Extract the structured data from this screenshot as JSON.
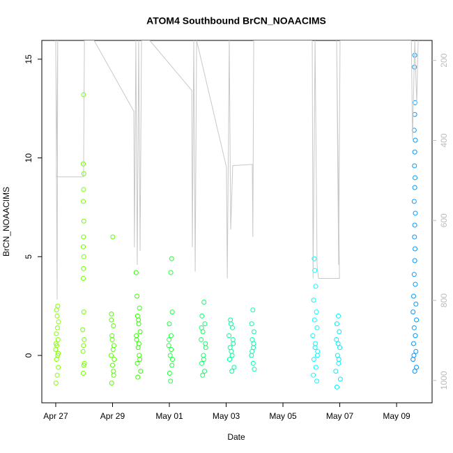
{
  "chart_data": {
    "type": "scatter",
    "title": "ATOM4 Southbound BrCN_NOAACIMS",
    "x_label": "Date",
    "y_label": "BrCN_NOAACIMS",
    "xlim": [
      -0.49,
      13.25
    ],
    "xticks": [
      {
        "value": 0,
        "label": "Apr 27"
      },
      {
        "value": 2,
        "label": "Apr 29"
      },
      {
        "value": 4,
        "label": "May 01"
      },
      {
        "value": 6,
        "label": "May 03"
      },
      {
        "value": 8,
        "label": "May 05"
      },
      {
        "value": 10,
        "label": "May 07"
      },
      {
        "value": 12,
        "label": "May 09"
      }
    ],
    "ylim": [
      -2.4,
      15.95
    ],
    "yticks": [
      0,
      5,
      10,
      15
    ],
    "y2lim": [
      1056,
      150
    ],
    "y2ticks": [
      200,
      400,
      600,
      800,
      1000
    ],
    "series": [
      {
        "color": "#80ff00",
        "x": [
          0.01,
          0.05,
          0.09,
          0.03,
          0.07,
          0.0,
          0.04,
          0.08,
          0.02,
          0.06,
          0.1,
          0.05,
          0.03,
          0.07,
          0.09,
          0.01
        ],
        "values": [
          -1.4,
          -1.0,
          -0.6,
          -0.2,
          0,
          0.3,
          0.5,
          0.8,
          1.1,
          1.4,
          1.7,
          2.0,
          2.3,
          2.5,
          0.1,
          0.6
        ]
      },
      {
        "color": "#70ff00",
        "x": [
          0.98,
          0.97,
          0.99,
          0.98,
          0.97,
          0.99,
          0.98,
          0.97,
          0.99,
          0.98,
          0.97,
          0.99,
          0.95,
          1.0,
          0.96,
          1.01,
          0.97,
          0.99,
          0.98
        ],
        "values": [
          13.2,
          9.7,
          9.2,
          8.4,
          7.8,
          6.8,
          6.0,
          5.5,
          5.0,
          4.4,
          3.9,
          2.2,
          1.3,
          0.8,
          0.2,
          -0.4,
          -0.9,
          -0.5,
          0.5
        ]
      },
      {
        "color": "#55ff00",
        "x": [
          2.01,
          1.96,
          2.03,
          1.98,
          2.05,
          1.95,
          2.0,
          2.04,
          1.97,
          2.02,
          1.99,
          2.06,
          1.96,
          2.03
        ],
        "values": [
          6.0,
          2.1,
          1.5,
          1.0,
          0.5,
          0,
          -0.5,
          -1.0,
          -1.4,
          0.3,
          0.8,
          -0.2,
          1.8,
          -0.8
        ]
      },
      {
        "color": "#33ff00",
        "x": [
          2.83,
          2.86,
          2.95,
          2.88,
          2.92,
          2.97,
          2.85,
          2.9,
          2.94,
          2.87,
          2.99,
          2.89,
          2.93,
          2.84,
          2.96,
          2.91
        ],
        "values": [
          4.2,
          3.0,
          2.4,
          2.0,
          1.6,
          1.2,
          0.8,
          0.4,
          0,
          -0.4,
          -0.8,
          -1.1,
          0.6,
          1.0,
          -0.2,
          1.8
        ]
      },
      {
        "color": "#22ff40",
        "x": [
          4.08,
          4.05,
          4.1,
          4.0,
          4.06,
          3.98,
          4.03,
          4.09,
          4.01,
          4.04,
          4.07,
          3.99,
          4.11
        ],
        "values": [
          4.9,
          4.2,
          2.2,
          1.6,
          1.0,
          0.5,
          0,
          -0.5,
          -0.9,
          -1.3,
          0.3,
          0.8,
          -0.2
        ]
      },
      {
        "color": "#11ff66",
        "x": [
          5.22,
          5.15,
          5.25,
          5.18,
          5.12,
          5.28,
          5.2,
          5.14,
          5.24,
          5.17,
          5.27,
          5.21,
          5.13
        ],
        "values": [
          2.7,
          2.0,
          1.6,
          1.2,
          0.8,
          0.4,
          0,
          -0.4,
          -0.8,
          -1.0,
          0.6,
          -0.2,
          1.4
        ]
      },
      {
        "color": "#00ff99",
        "x": [
          6.15,
          6.22,
          6.1,
          6.25,
          6.18,
          6.12,
          6.28,
          6.2,
          6.14,
          6.24,
          6.17,
          6.21
        ],
        "values": [
          1.8,
          1.4,
          1.0,
          0.6,
          0.2,
          -0.2,
          -0.6,
          -0.8,
          0.4,
          0.8,
          1.6,
          0
        ]
      },
      {
        "color": "#00ffaa",
        "x": [
          6.94,
          6.9,
          6.98,
          6.92,
          6.96,
          6.89,
          6.95,
          6.99,
          6.91,
          6.97
        ],
        "values": [
          2.3,
          1.6,
          1.2,
          0.8,
          0.4,
          0,
          -0.4,
          -0.7,
          0.2,
          0.6
        ]
      },
      {
        "color": "#00ffff",
        "x": [
          9.1,
          9.12,
          9.15,
          9.08,
          9.18,
          9.11,
          9.2,
          9.05,
          9.14,
          9.22,
          9.09,
          9.16,
          9.07,
          9.19,
          9.13,
          9.21
        ],
        "values": [
          4.9,
          4.3,
          3.5,
          2.8,
          2.2,
          1.8,
          1.4,
          1.0,
          0.6,
          0.2,
          -0.2,
          -0.6,
          -1.0,
          -1.3,
          0.4,
          0
        ]
      },
      {
        "color": "#00f0ff",
        "x": [
          9.95,
          9.9,
          9.98,
          9.88,
          10.0,
          9.92,
          9.96,
          9.86,
          10.02,
          9.9,
          9.94,
          9.97
        ],
        "values": [
          2.0,
          1.6,
          1.2,
          0.8,
          0.4,
          0,
          -0.4,
          -0.8,
          -1.2,
          -1.6,
          0.6,
          -0.2
        ]
      },
      {
        "color": "#0099ff",
        "x": [
          12.64,
          12.63,
          12.65,
          12.64,
          12.62,
          12.66,
          12.64,
          12.63,
          12.65,
          12.64,
          12.62,
          12.66,
          12.64,
          12.63,
          12.65,
          12.64,
          12.62,
          12.66,
          12.6,
          12.68,
          12.58,
          12.7,
          12.62,
          12.66,
          12.6,
          12.68,
          12.58,
          12.7,
          12.64,
          12.61
        ],
        "values": [
          15.2,
          14.6,
          12.8,
          12.2,
          11.4,
          10.9,
          10.3,
          9.6,
          9.0,
          8.5,
          7.8,
          7.2,
          6.6,
          6.0,
          5.4,
          4.8,
          4.1,
          3.6,
          3.0,
          2.6,
          2.2,
          1.8,
          1.4,
          1.0,
          0.6,
          0.2,
          -0.2,
          -0.6,
          -0.8,
          0
        ]
      },
      {
        "color": "#c8c8c8",
        "type": "line",
        "axis": "y2",
        "x": [
          0,
          0.05,
          0.07,
          0.02,
          0.98,
          1.01,
          1.35,
          2.75,
          2.77,
          2.82,
          2.87,
          2.92,
          2.97,
          3.02,
          3.31,
          4.79,
          4.81,
          4.86,
          4.91,
          4.96,
          6.01,
          6.04,
          6.11,
          6.16,
          6.23,
          6.92,
          6.94,
          6.97,
          9.03,
          9.06,
          9.13,
          9.2,
          9.25,
          9.99,
          9.89,
          9.96,
          10.01,
          12.52,
          12.56,
          12.64,
          12.71,
          12.76
        ],
        "values": [
          150,
          798,
          150,
          491,
          491,
          150,
          150,
          327,
          667,
          150,
          711,
          150,
          676,
          150,
          150,
          275,
          667,
          150,
          728,
          150,
          467,
          745,
          150,
          623,
          463,
          460,
          641,
          150,
          150,
          745,
          150,
          711,
          745,
          745,
          150,
          711,
          150,
          150,
          397,
          150,
          310,
          150
        ]
      }
    ]
  }
}
